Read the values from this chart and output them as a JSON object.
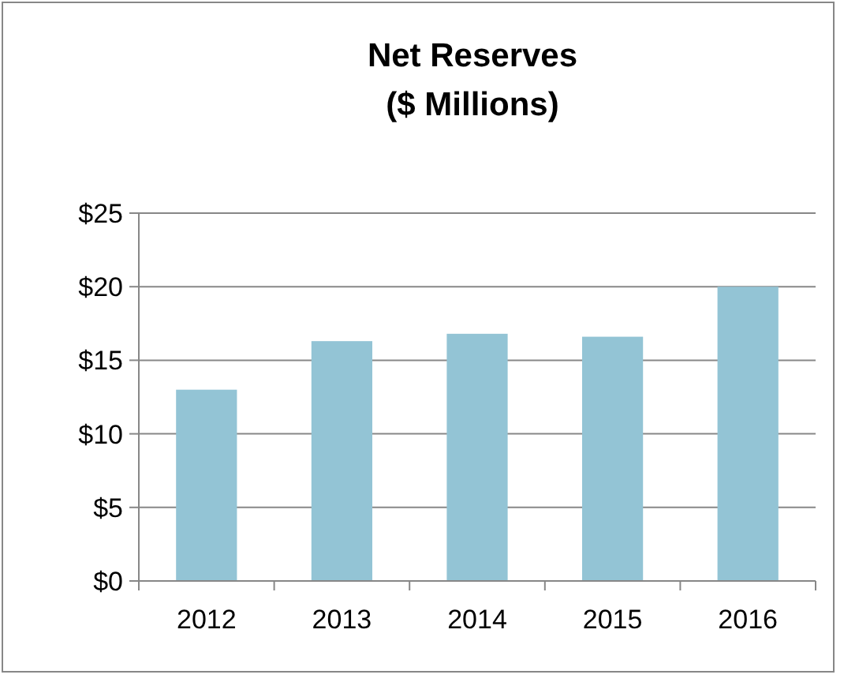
{
  "chart_data": {
    "type": "bar",
    "title": "Net Reserves\n($ Millions)",
    "categories": [
      "2012",
      "2013",
      "2014",
      "2015",
      "2016"
    ],
    "values": [
      13.0,
      16.3,
      16.8,
      16.6,
      20.0
    ],
    "color": "#93c4d5",
    "ylim": [
      0,
      25
    ],
    "yticks": [
      {
        "value": 0,
        "label": "$0"
      },
      {
        "value": 5,
        "label": "$5"
      },
      {
        "value": 10,
        "label": "$10"
      },
      {
        "value": 15,
        "label": "$15"
      },
      {
        "value": 20,
        "label": "$20"
      },
      {
        "value": 25,
        "label": "$25"
      }
    ],
    "grid": "y"
  }
}
